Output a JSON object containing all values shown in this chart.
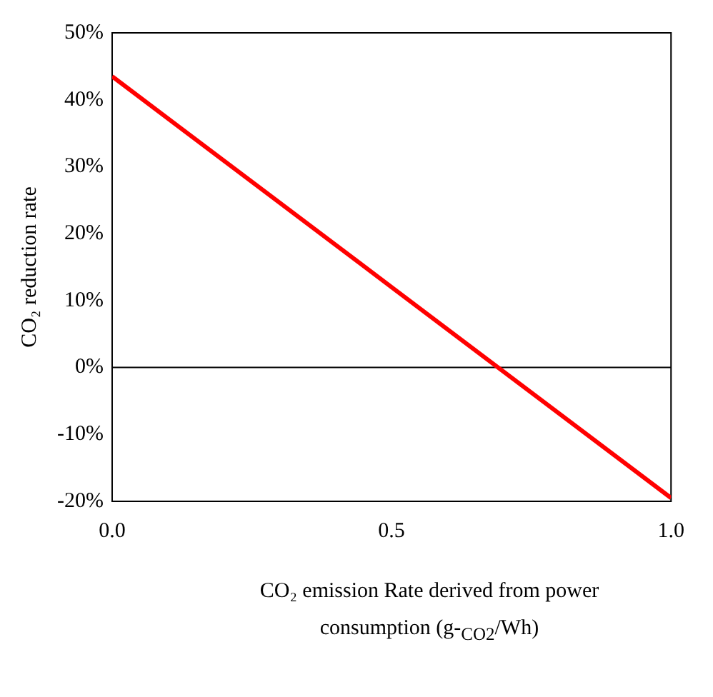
{
  "chart_data": {
    "type": "line",
    "xlabel": "CO₂ emission Rate derived from power consumption (g-$_{CO2}$/Wh)",
    "ylabel": "CO₂ reduction rate",
    "x": [
      0,
      0.5,
      1.0
    ],
    "series": [
      {
        "color": "#ff0000",
        "values": [
          43.5,
          12,
          -19.5
        ]
      }
    ],
    "xlim": [
      0,
      1
    ],
    "xticks": [
      {
        "value": 0,
        "label": "0.0"
      },
      {
        "value": 0.5,
        "label": "0.5"
      },
      {
        "value": 1,
        "label": "1.0"
      }
    ],
    "ylim": [
      -20,
      50
    ],
    "yticks": [
      {
        "value": -20,
        "label": "-20%"
      },
      {
        "value": -10,
        "label": "-10%"
      },
      {
        "value": 0,
        "label": "0%"
      },
      {
        "value": 10,
        "label": "10%"
      },
      {
        "value": 20,
        "label": "20%"
      },
      {
        "value": 30,
        "label": "30%"
      },
      {
        "value": 40,
        "label": "40%"
      },
      {
        "value": 50,
        "label": "50%"
      }
    ],
    "ref_lines": [
      {
        "axis": "y",
        "value": 0,
        "color": "#000000"
      }
    ],
    "grid": false,
    "legend": false,
    "marker": "none",
    "line_style": "solid"
  }
}
